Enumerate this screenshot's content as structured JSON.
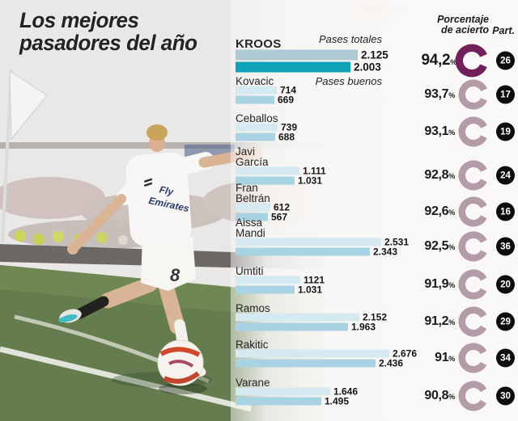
{
  "title": {
    "line1": "Los mejores",
    "line2": "pasadores del año"
  },
  "headers": {
    "accuracy_line1": "Porcentaje",
    "accuracy_line2": "de acierto",
    "participations": "Part."
  },
  "colors": {
    "accent_dark_ring": "#72205c",
    "muted_ring": "#b39ba7",
    "bar_total_lead": "#aec9d4",
    "bar_good_lead": "#0da2b8",
    "bar_total": "#d4e9f0",
    "bar_good": "#a8d3e3",
    "badge": "#0d0d0d",
    "pitch_green": "#647c4e",
    "ball_accent": "#d0482c"
  },
  "photo": {
    "jersey_sponsor_line1": "Fly",
    "jersey_sponsor_line2": "Emirates",
    "shorts_number": "8"
  },
  "chart_data": {
    "type": "bar",
    "orientation": "horizontal",
    "title": "Los mejores pasadores del año",
    "series_labels": {
      "total": "Pases totales",
      "good": "Pases buenos"
    },
    "percent_symbol": "%",
    "max_value": 2676,
    "players": [
      {
        "name": "KROOS",
        "name_lines": [
          "KROOS"
        ],
        "totales": "2.125",
        "totales_value": 2125,
        "buenos": "2.003",
        "buenos_value": 2003,
        "pct": "94,2",
        "pct_value": 94.2,
        "part": "26",
        "lead": true
      },
      {
        "name": "Kovacic",
        "name_lines": [
          "Kovacic"
        ],
        "totales": "714",
        "totales_value": 714,
        "buenos": "669",
        "buenos_value": 669,
        "pct": "93,7",
        "pct_value": 93.7,
        "part": "17",
        "lead": false
      },
      {
        "name": "Ceballos",
        "name_lines": [
          "Ceballos"
        ],
        "totales": "739",
        "totales_value": 739,
        "buenos": "688",
        "buenos_value": 688,
        "pct": "93,1",
        "pct_value": 93.1,
        "part": "19",
        "lead": false
      },
      {
        "name": "Javi García",
        "name_lines": [
          "Javi",
          "García"
        ],
        "totales": "1.111",
        "totales_value": 1111,
        "buenos": "1.031",
        "buenos_value": 1031,
        "pct": "92,8",
        "pct_value": 92.8,
        "part": "24",
        "lead": false
      },
      {
        "name": "Fran Beltrán",
        "name_lines": [
          "Fran",
          "Beltrán"
        ],
        "totales": "612",
        "totales_value": 612,
        "buenos": "567",
        "buenos_value": 567,
        "pct": "92,6",
        "pct_value": 92.6,
        "part": "16",
        "lead": false
      },
      {
        "name": "Aissa Mandi",
        "name_lines": [
          "Aissa",
          "Mandi"
        ],
        "totales": "2.531",
        "totales_value": 2531,
        "buenos": "2.343",
        "buenos_value": 2343,
        "pct": "92,5",
        "pct_value": 92.5,
        "part": "36",
        "lead": false
      },
      {
        "name": "Umtiti",
        "name_lines": [
          "Umtiti"
        ],
        "totales": "1121",
        "totales_value": 1121,
        "buenos": "1.031",
        "buenos_value": 1031,
        "pct": "91,9",
        "pct_value": 91.9,
        "part": "20",
        "lead": false
      },
      {
        "name": "Ramos",
        "name_lines": [
          "Ramos"
        ],
        "totales": "2.152",
        "totales_value": 2152,
        "buenos": "1.963",
        "buenos_value": 1963,
        "pct": "91,2",
        "pct_value": 91.2,
        "part": "29",
        "lead": false
      },
      {
        "name": "Rakitic",
        "name_lines": [
          "Rakitic"
        ],
        "totales": "2.676",
        "totales_value": 2676,
        "buenos": "2.436",
        "buenos_value": 2436,
        "pct": "91",
        "pct_value": 91.0,
        "part": "34",
        "lead": false
      },
      {
        "name": "Varane",
        "name_lines": [
          "Varane"
        ],
        "totales": "1.646",
        "totales_value": 1646,
        "buenos": "1.495",
        "buenos_value": 1495,
        "pct": "90,8",
        "pct_value": 90.8,
        "part": "30",
        "lead": false
      }
    ]
  }
}
